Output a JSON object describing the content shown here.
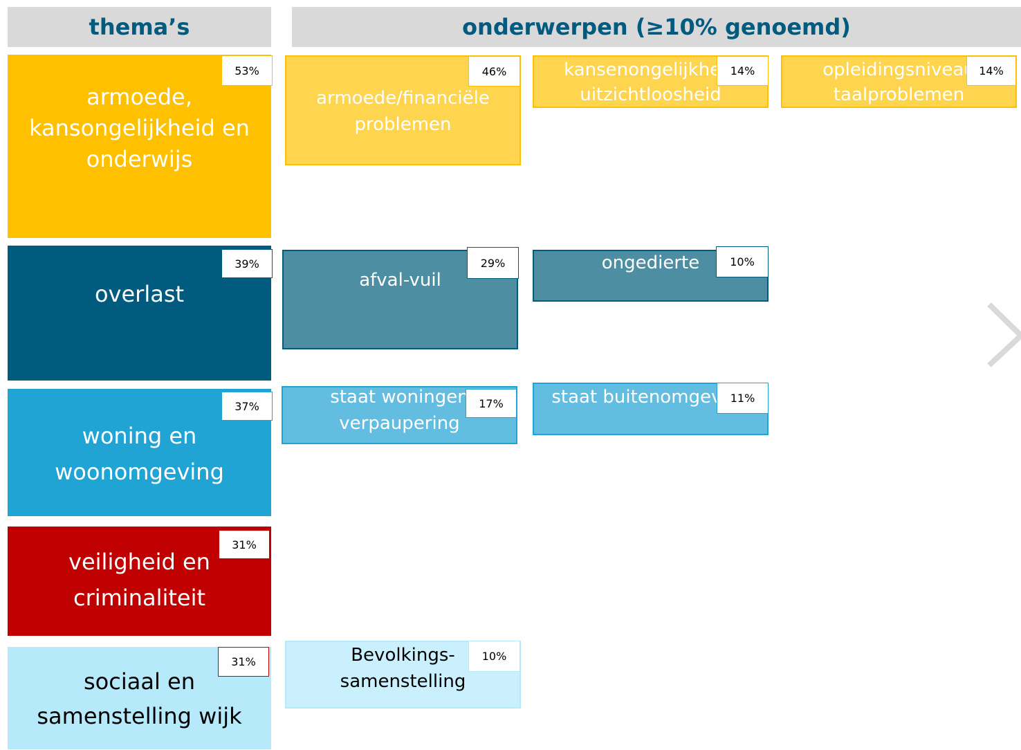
{
  "headers": {
    "themes": "thema’s",
    "topics": "onderwerpen (≥10% genoemd)"
  },
  "themes": [
    {
      "lines": [
        "armoede,",
        "kansongelijkheid en",
        "onderwijs"
      ],
      "percent": "53%",
      "topics": [
        {
          "lines": [
            "armoede/financiële",
            "problemen"
          ],
          "percent": "46%"
        },
        {
          "lines": [
            "kansenongelijkheid",
            "uitzichtloosheid"
          ],
          "percent": "14%"
        },
        {
          "lines": [
            "opleidingsniveau",
            "taalproblemen"
          ],
          "percent": "14%"
        }
      ]
    },
    {
      "lines": [
        "overlast"
      ],
      "percent": "39%",
      "topics": [
        {
          "lines": [
            "afval-vuil"
          ],
          "percent": "29%"
        },
        {
          "lines": [
            "ongedierte"
          ],
          "percent": "10%"
        }
      ]
    },
    {
      "lines": [
        "woning en",
        "woonomgeving"
      ],
      "percent": "37%",
      "topics": [
        {
          "lines": [
            "staat woningen",
            "verpaupering"
          ],
          "percent": "17%"
        },
        {
          "lines": [
            "staat buitenomgeving"
          ],
          "percent": "11%"
        }
      ]
    },
    {
      "lines": [
        "veiligheid en",
        "criminaliteit"
      ],
      "percent": "31%",
      "topics": []
    },
    {
      "lines": [
        "sociaal en",
        "samenstelling wijk"
      ],
      "percent": "31%",
      "topics": [
        {
          "lines": [
            "Bevolkings-",
            "samenstelling"
          ],
          "percent": "10%"
        }
      ]
    }
  ]
}
